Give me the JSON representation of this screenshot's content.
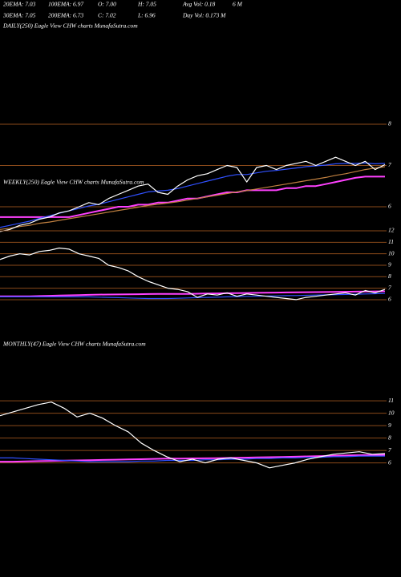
{
  "header": {
    "row1": [
      "20EMA: 7.03",
      "100EMA: 6.97",
      "O: 7.00",
      "H: 7.05",
      "Avg Vol: 0.18",
      "6 M"
    ],
    "row2": [
      "30EMA: 7.05",
      "200EMA: 6.73",
      "C: 7.02",
      "L: 6.96",
      "Day Vol: 0.173 M"
    ]
  },
  "chart_data": [
    {
      "type": "line",
      "title": "DAILY(250) Eagle  View  CHW charts MunafaSutra.com",
      "ylim": [
        5.34,
        8.29
      ],
      "yticks": [
        6,
        7,
        8
      ],
      "grid": true,
      "grid_color": "#8a4a1a",
      "series": [
        {
          "color": "#ff40ff",
          "values": [
            5.75,
            5.75,
            5.75,
            5.75,
            5.75,
            5.75,
            5.75,
            5.75,
            5.8,
            5.85,
            5.9,
            5.95,
            6.0,
            6.0,
            6.05,
            6.05,
            6.1,
            6.1,
            6.15,
            6.2,
            6.2,
            6.25,
            6.3,
            6.35,
            6.35,
            6.4,
            6.4,
            6.4,
            6.4,
            6.45,
            6.45,
            6.5,
            6.5,
            6.55,
            6.6,
            6.65,
            6.7,
            6.73,
            6.73,
            6.73
          ]
        },
        {
          "color": "#c08040",
          "values": [
            5.45,
            5.48,
            5.52,
            5.55,
            5.6,
            5.63,
            5.67,
            5.71,
            5.75,
            5.79,
            5.83,
            5.87,
            5.91,
            5.95,
            5.99,
            6.03,
            6.06,
            6.09,
            6.12,
            6.16,
            6.2,
            6.24,
            6.28,
            6.32,
            6.36,
            6.39,
            6.43,
            6.47,
            6.51,
            6.55,
            6.59,
            6.63,
            6.67,
            6.71,
            6.76,
            6.8,
            6.85,
            6.9,
            6.94,
            6.97
          ]
        },
        {
          "color": "#3050ff",
          "values": [
            5.5,
            5.55,
            5.6,
            5.65,
            5.72,
            5.78,
            5.84,
            5.9,
            5.96,
            6.02,
            6.06,
            6.12,
            6.18,
            6.24,
            6.3,
            6.36,
            6.38,
            6.4,
            6.44,
            6.5,
            6.56,
            6.62,
            6.68,
            6.74,
            6.78,
            6.78,
            6.82,
            6.86,
            6.88,
            6.91,
            6.94,
            6.97,
            6.99,
            7.01,
            7.04,
            7.05,
            7.05,
            7.06,
            7.04,
            7.05
          ]
        },
        {
          "color": "#ffffff",
          "values": [
            5.4,
            5.45,
            5.55,
            5.6,
            5.7,
            5.75,
            5.85,
            5.9,
            6.0,
            6.1,
            6.05,
            6.2,
            6.3,
            6.4,
            6.5,
            6.55,
            6.35,
            6.3,
            6.5,
            6.65,
            6.75,
            6.8,
            6.9,
            7.0,
            6.95,
            6.6,
            6.95,
            7.0,
            6.9,
            7.0,
            7.05,
            7.1,
            7.0,
            7.1,
            7.2,
            7.1,
            7.0,
            7.1,
            6.9,
            7.02
          ]
        }
      ]
    },
    {
      "type": "line",
      "title": "WEEKLY(250) Eagle  View  CHW charts MunafaSutra.com",
      "ylim": [
        4.53,
        12.56
      ],
      "yticks": [
        6,
        7,
        8,
        9,
        10,
        11,
        12
      ],
      "grid": true,
      "grid_color": "#8a4a1a",
      "series": [
        {
          "color": "#ff40ff",
          "values": [
            6.3,
            6.3,
            6.3,
            6.3,
            6.32,
            6.34,
            6.36,
            6.38,
            6.4,
            6.42,
            6.44,
            6.45,
            6.46,
            6.47,
            6.48,
            6.49,
            6.5,
            6.5,
            6.5,
            6.5,
            6.52,
            6.54,
            6.55,
            6.56,
            6.57,
            6.58,
            6.6,
            6.61,
            6.62,
            6.63,
            6.64,
            6.65,
            6.66,
            6.67,
            6.68,
            6.69,
            6.7,
            6.71,
            6.72,
            6.73
          ]
        },
        {
          "color": "#3050ff",
          "values": [
            6.25,
            6.25,
            6.25,
            6.25,
            6.25,
            6.25,
            6.25,
            6.25,
            6.25,
            6.25,
            6.22,
            6.2,
            6.18,
            6.15,
            6.12,
            6.1,
            6.1,
            6.1,
            6.12,
            6.15,
            6.18,
            6.2,
            6.22,
            6.25,
            6.27,
            6.29,
            6.3,
            6.32,
            6.33,
            6.35,
            6.36,
            6.38,
            6.4,
            6.42,
            6.44,
            6.46,
            6.48,
            6.5,
            6.52,
            6.54
          ]
        },
        {
          "color": "#ffffff",
          "values": [
            9.5,
            9.8,
            10.0,
            9.9,
            10.2,
            10.3,
            10.5,
            10.4,
            10.0,
            9.8,
            9.6,
            9.0,
            8.8,
            8.5,
            8.0,
            7.6,
            7.3,
            7.0,
            6.9,
            6.7,
            6.2,
            6.5,
            6.4,
            6.6,
            6.3,
            6.5,
            6.4,
            6.3,
            6.2,
            6.1,
            6.0,
            6.2,
            6.3,
            6.4,
            6.5,
            6.6,
            6.4,
            6.8,
            6.6,
            6.9
          ]
        }
      ]
    },
    {
      "type": "line",
      "title": "MONTHLY(47) Eagle  View  CHW charts MunafaSutra.com",
      "ylim": [
        5.2,
        12.3
      ],
      "yticks": [
        6,
        7,
        8,
        9,
        10,
        11
      ],
      "grid": true,
      "grid_color": "#8a4a1a",
      "series": [
        {
          "color": "#ff40ff",
          "values": [
            6.1,
            6.1,
            6.12,
            6.14,
            6.16,
            6.18,
            6.2,
            6.22,
            6.24,
            6.26,
            6.28,
            6.3,
            6.32,
            6.34,
            6.35,
            6.36,
            6.37,
            6.38,
            6.4,
            6.42,
            6.44,
            6.46,
            6.48,
            6.5,
            6.52,
            6.55,
            6.58,
            6.6,
            6.62,
            6.64,
            6.65
          ]
        },
        {
          "color": "#3050ff",
          "values": [
            6.4,
            6.4,
            6.35,
            6.3,
            6.25,
            6.2,
            6.15,
            6.1,
            6.1,
            6.1,
            6.1,
            6.15,
            6.15,
            6.2,
            6.2,
            6.2,
            6.25,
            6.25,
            6.3,
            6.3,
            6.35,
            6.35,
            6.4,
            6.4,
            6.45,
            6.45,
            6.5,
            6.5,
            6.55,
            6.55,
            6.55
          ]
        },
        {
          "color": "#ffffff",
          "values": [
            9.8,
            10.1,
            10.4,
            10.7,
            10.9,
            10.4,
            9.7,
            10.0,
            9.6,
            9.0,
            8.5,
            7.6,
            7.0,
            6.5,
            6.1,
            6.3,
            6.0,
            6.3,
            6.4,
            6.2,
            6.0,
            5.6,
            5.8,
            6.0,
            6.3,
            6.5,
            6.7,
            6.8,
            6.9,
            6.7,
            6.75
          ]
        }
      ]
    }
  ]
}
